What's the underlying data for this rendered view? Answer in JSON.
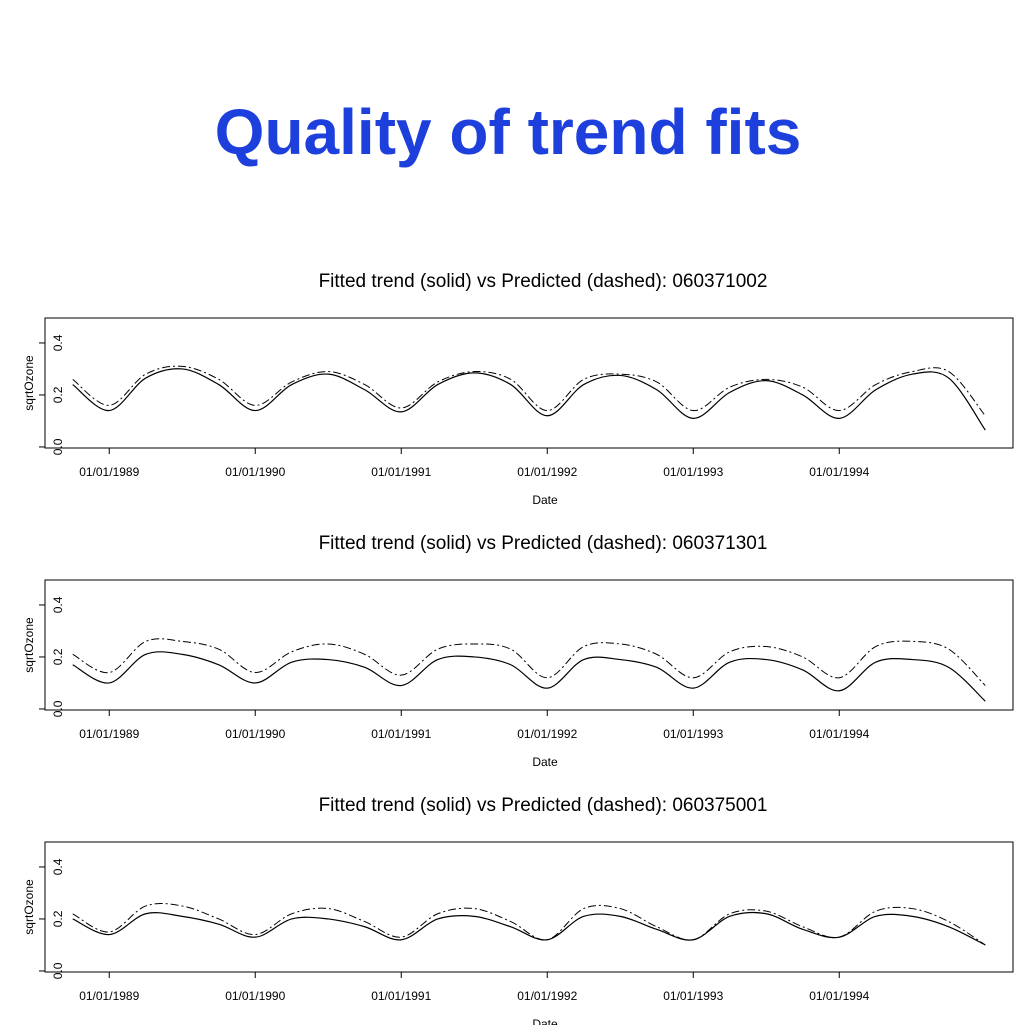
{
  "title": "Quality of trend fits",
  "chart_data": [
    {
      "type": "line",
      "title": "Fitted trend (solid) vs Predicted (dashed): 060371002",
      "xlabel": "Date",
      "ylabel": "sqrtOzone",
      "x": [
        1988.75,
        1989.0,
        1989.25,
        1989.5,
        1989.75,
        1990.0,
        1990.25,
        1990.5,
        1990.75,
        1991.0,
        1991.25,
        1991.5,
        1991.75,
        1992.0,
        1992.25,
        1992.5,
        1992.75,
        1993.0,
        1993.25,
        1993.5,
        1993.75,
        1994.0,
        1994.25,
        1994.5,
        1994.75,
        1995.0
      ],
      "series": [
        {
          "color": "#000000",
          "style": "solid",
          "values": [
            0.24,
            0.14,
            0.265,
            0.3,
            0.24,
            0.14,
            0.24,
            0.28,
            0.22,
            0.135,
            0.24,
            0.285,
            0.24,
            0.12,
            0.24,
            0.275,
            0.22,
            0.11,
            0.21,
            0.255,
            0.2,
            0.11,
            0.22,
            0.28,
            0.265,
            0.065
          ]
        },
        {
          "color": "#000000",
          "style": "dashdot",
          "values": [
            0.26,
            0.16,
            0.28,
            0.31,
            0.26,
            0.16,
            0.25,
            0.29,
            0.24,
            0.15,
            0.25,
            0.29,
            0.26,
            0.14,
            0.26,
            0.28,
            0.25,
            0.14,
            0.23,
            0.26,
            0.23,
            0.14,
            0.24,
            0.29,
            0.29,
            0.12
          ]
        }
      ],
      "xlim": [
        1988.56,
        1995.19
      ],
      "ylim": [
        -0.004,
        0.496
      ],
      "xticks": [
        {
          "value": 1989,
          "label": "01/01/1989"
        },
        {
          "value": 1990,
          "label": "01/01/1990"
        },
        {
          "value": 1991,
          "label": "01/01/1991"
        },
        {
          "value": 1992,
          "label": "01/01/1992"
        },
        {
          "value": 1993,
          "label": "01/01/1993"
        },
        {
          "value": 1994,
          "label": "01/01/1994"
        }
      ],
      "yticks": [
        {
          "value": 0,
          "label": "0.0"
        },
        0.2,
        0.4
      ]
    },
    {
      "type": "line",
      "title": "Fitted trend (solid) vs Predicted (dashed): 060371301",
      "xlabel": "Date",
      "ylabel": "sqrtOzone",
      "x": [
        1988.75,
        1989.0,
        1989.25,
        1989.5,
        1989.75,
        1990.0,
        1990.25,
        1990.5,
        1990.75,
        1991.0,
        1991.25,
        1991.5,
        1991.75,
        1992.0,
        1992.25,
        1992.5,
        1992.75,
        1993.0,
        1993.25,
        1993.5,
        1993.75,
        1994.0,
        1994.25,
        1994.5,
        1994.75,
        1995.0
      ],
      "series": [
        {
          "color": "#000000",
          "style": "solid",
          "values": [
            0.17,
            0.1,
            0.21,
            0.21,
            0.17,
            0.1,
            0.18,
            0.19,
            0.16,
            0.09,
            0.19,
            0.2,
            0.17,
            0.08,
            0.19,
            0.19,
            0.16,
            0.08,
            0.18,
            0.19,
            0.15,
            0.07,
            0.18,
            0.19,
            0.16,
            0.03
          ]
        },
        {
          "color": "#000000",
          "style": "dashdot",
          "values": [
            0.21,
            0.14,
            0.26,
            0.26,
            0.23,
            0.14,
            0.22,
            0.25,
            0.21,
            0.13,
            0.23,
            0.25,
            0.23,
            0.12,
            0.24,
            0.25,
            0.21,
            0.12,
            0.22,
            0.24,
            0.2,
            0.12,
            0.24,
            0.26,
            0.23,
            0.09
          ]
        }
      ],
      "xlim": [
        1988.56,
        1995.19
      ],
      "ylim": [
        -0.004,
        0.496
      ],
      "xticks": [
        {
          "value": 1989,
          "label": "01/01/1989"
        },
        {
          "value": 1990,
          "label": "01/01/1990"
        },
        {
          "value": 1991,
          "label": "01/01/1991"
        },
        {
          "value": 1992,
          "label": "01/01/1992"
        },
        {
          "value": 1993,
          "label": "01/01/1993"
        },
        {
          "value": 1994,
          "label": "01/01/1994"
        }
      ],
      "yticks": [
        {
          "value": 0,
          "label": "0.0"
        },
        0.2,
        0.4
      ]
    },
    {
      "type": "line",
      "title": "Fitted trend (solid) vs Predicted (dashed): 060375001",
      "xlabel": "Date",
      "ylabel": "sqrtOzone",
      "x": [
        1988.75,
        1989.0,
        1989.25,
        1989.5,
        1989.75,
        1990.0,
        1990.25,
        1990.5,
        1990.75,
        1991.0,
        1991.25,
        1991.5,
        1991.75,
        1992.0,
        1992.25,
        1992.5,
        1992.75,
        1993.0,
        1993.25,
        1993.5,
        1993.75,
        1994.0,
        1994.25,
        1994.5,
        1994.75,
        1995.0
      ],
      "series": [
        {
          "color": "#000000",
          "style": "solid",
          "values": [
            0.2,
            0.14,
            0.22,
            0.21,
            0.18,
            0.13,
            0.2,
            0.2,
            0.17,
            0.12,
            0.2,
            0.21,
            0.17,
            0.12,
            0.21,
            0.21,
            0.16,
            0.12,
            0.21,
            0.22,
            0.16,
            0.13,
            0.21,
            0.21,
            0.17,
            0.1
          ]
        },
        {
          "color": "#000000",
          "style": "dashdot",
          "values": [
            0.22,
            0.15,
            0.25,
            0.25,
            0.2,
            0.14,
            0.22,
            0.24,
            0.19,
            0.13,
            0.22,
            0.24,
            0.19,
            0.12,
            0.24,
            0.24,
            0.17,
            0.12,
            0.22,
            0.23,
            0.17,
            0.13,
            0.23,
            0.24,
            0.19,
            0.1
          ]
        }
      ],
      "xlim": [
        1988.56,
        1995.19
      ],
      "ylim": [
        -0.004,
        0.496
      ],
      "xticks": [
        {
          "value": 1989,
          "label": "01/01/1989"
        },
        {
          "value": 1990,
          "label": "01/01/1990"
        },
        {
          "value": 1991,
          "label": "01/01/1991"
        },
        {
          "value": 1992,
          "label": "01/01/1992"
        },
        {
          "value": 1993,
          "label": "01/01/1993"
        },
        {
          "value": 1994,
          "label": "01/01/1994"
        }
      ],
      "yticks": [
        {
          "value": 0,
          "label": "0.0"
        },
        0.2,
        0.4
      ]
    }
  ]
}
